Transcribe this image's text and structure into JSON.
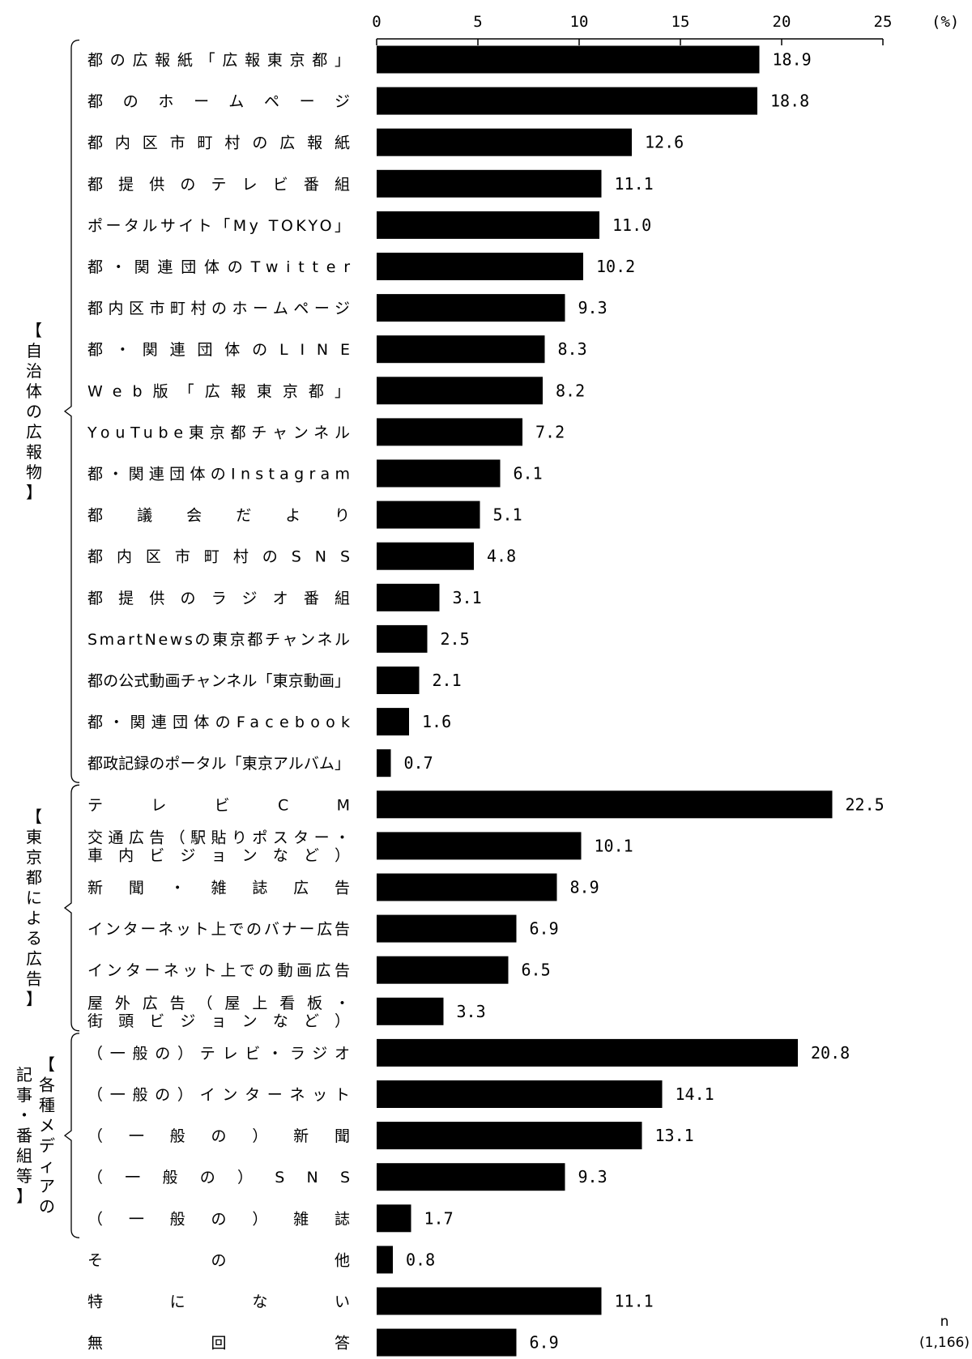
{
  "chart_data": {
    "type": "bar",
    "orientation": "horizontal",
    "xlim": [
      0,
      25
    ],
    "x_ticks": [
      "0",
      "5",
      "10",
      "15",
      "20",
      "25"
    ],
    "unit": "(%)",
    "n_label": "n",
    "n_value": "(1,166)",
    "bar_color": "#000000",
    "groups": [
      {
        "label": "【自治体の広報物】",
        "label_lines": [],
        "first": 0,
        "last": 17
      },
      {
        "label": "【東京都による広告】",
        "label_lines": [],
        "first": 18,
        "last": 23
      },
      {
        "label": "【各種メディアの記事・番組等】",
        "label_lines": [
          "【各種メディアの",
          "記事・番組等】"
        ],
        "first": 24,
        "last": 28
      }
    ],
    "categories": [
      "都の広報紙「広報東京都」",
      "都のホームページ",
      "都内区市町村の広報紙",
      "都提供のテレビ番組",
      "ポータルサイト「My TOKYO」",
      "都・関連団体のTwitter",
      "都内区市町村のホームページ",
      "都・関連団体のLINE",
      "Web版「広報東京都」",
      "YouTube東京都チャンネル",
      "都・関連団体のInstagram",
      "都議会だより",
      "都内区市町村のSNS",
      "都提供のラジオ番組",
      "SmartNewsの東京都チャンネル",
      "都の公式動画チャンネル「東京動画」",
      "都・関連団体のFacebook",
      "都政記録のポータル「東京アルバム」",
      "テレビCM",
      "交通広告（駅貼りポスター・車内ビジョンなど）",
      "新聞・雑誌広告",
      "インターネット上でのバナー広告",
      "インターネット上での動画広告",
      "屋外広告（屋上看板・街頭ビジョンなど）",
      "（一般の）テレビ・ラジオ",
      "（一般の）インターネット",
      "（一般の）新聞",
      "（一般の）SNS",
      "（一般の）雑誌",
      "その他",
      "特にない",
      "無回答"
    ],
    "category_lines": {
      "19": [
        "交通広告（駅貼りポスター・",
        "車内ビジョンなど）"
      ],
      "23": [
        "屋外広告（屋上看板・",
        "街頭ビジョンなど）"
      ]
    },
    "values": [
      18.9,
      18.8,
      12.6,
      11.1,
      11.0,
      10.2,
      9.3,
      8.3,
      8.2,
      7.2,
      6.1,
      5.1,
      4.8,
      3.1,
      2.5,
      2.1,
      1.6,
      0.7,
      22.5,
      10.1,
      8.9,
      6.9,
      6.5,
      3.3,
      20.8,
      14.1,
      13.1,
      9.3,
      1.7,
      0.8,
      11.1,
      6.9
    ],
    "value_labels": [
      "18.9",
      "18.8",
      "12.6",
      "11.1",
      "11.0",
      "10.2",
      "9.3",
      "8.3",
      "8.2",
      "7.2",
      "6.1",
      "5.1",
      "4.8",
      "3.1",
      "2.5",
      "2.1",
      "1.6",
      "0.7",
      "22.5",
      "10.1",
      "8.9",
      "6.9",
      "6.5",
      "3.3",
      "20.8",
      "14.1",
      "13.1",
      "9.3",
      "1.7",
      "0.8",
      "11.1",
      "6.9"
    ]
  }
}
